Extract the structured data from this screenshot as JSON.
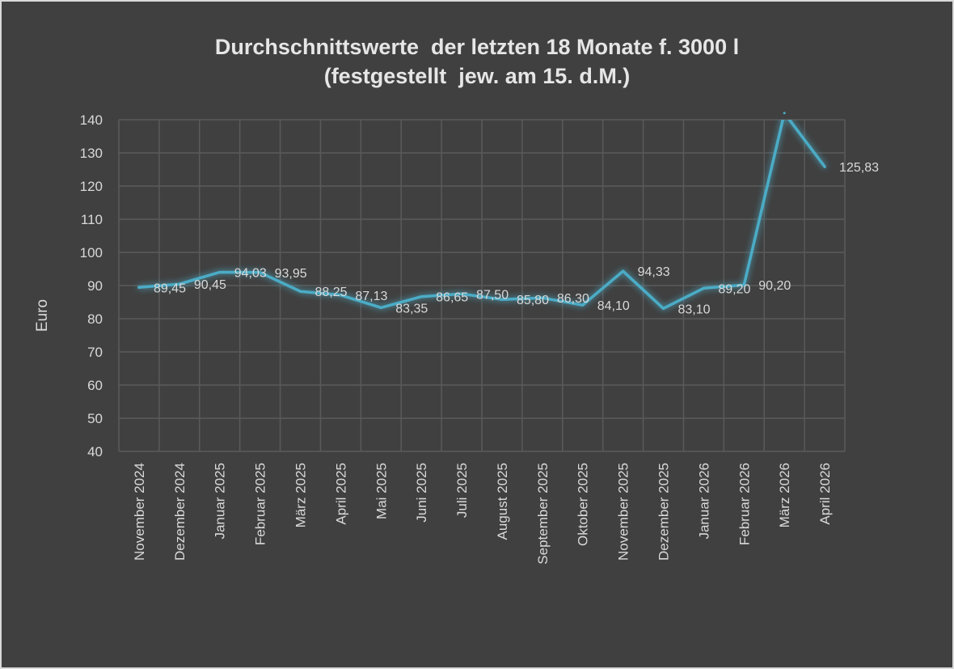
{
  "chart_data": {
    "type": "line",
    "title": [
      "Durchschnittswerte  der letzten 18 Monate f. 3000 l",
      "(festgestellt  jew. am 15. d.M.)"
    ],
    "xlabel": "",
    "ylabel": "Euro",
    "ylim": [
      40,
      140
    ],
    "yticks": [
      "40",
      "50",
      "60",
      "70",
      "80",
      "90",
      "100",
      "110",
      "120",
      "130",
      "140"
    ],
    "grid": true,
    "categories": [
      "November 2024",
      "Dezember 2024",
      "Januar 2025",
      "Februar 2025",
      "März 2025",
      "April 2025",
      "Mai 2025",
      "Juni 2025",
      "Juli 2025",
      "August 2025",
      "September 2025",
      "Oktober 2025",
      "November 2025",
      "Dezember 2025",
      "Januar 2026",
      "Februar 2026",
      "März 2026",
      "April 2026"
    ],
    "series": [
      {
        "name": "Durchschnittswert",
        "color": "#4bacc6",
        "values": [
          89.45,
          90.45,
          94.03,
          93.95,
          88.25,
          87.13,
          83.35,
          86.65,
          87.5,
          85.8,
          86.3,
          84.1,
          94.33,
          83.1,
          89.2,
          90.2,
          142.0,
          125.83
        ],
        "labels": [
          "89,45",
          "90,45",
          "94,03",
          "93,95",
          "88,25",
          "87,13",
          "83,35",
          "86,65",
          "87,50",
          "85,80",
          "86,30",
          "84,10",
          "94,33",
          "83,10",
          "89,20",
          "90,20",
          "",
          "125,83"
        ]
      }
    ]
  }
}
